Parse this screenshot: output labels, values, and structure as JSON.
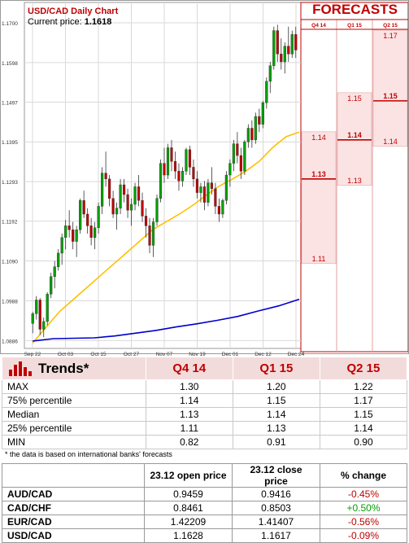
{
  "chart_title": "USD/CAD Daily Chart",
  "current_price_label": "Current price:",
  "current_price_value": "1.1618",
  "forecasts_title": "FORECASTS",
  "chart_data": {
    "type": "candlestick",
    "title": "USD/CAD Daily Chart",
    "y_ticks": [
      "1.1700",
      "1.1598",
      "1.1497",
      "1.1395",
      "1.1293",
      "1.1192",
      "1.1090",
      "1.0988",
      "1.0886"
    ],
    "ylim": [
      1.0866,
      1.1752
    ],
    "x_ticks": [
      "Sep 22",
      "Oct 03",
      "Oct 15",
      "Oct 27",
      "Nov 07",
      "Nov 19",
      "Dec 01",
      "Dec 12",
      "Dec 24"
    ],
    "candles": [
      [
        1.093,
        1.096,
        1.0905,
        1.0955
      ],
      [
        1.0955,
        1.1,
        1.094,
        1.099
      ],
      [
        1.099,
        1.0995,
        1.09,
        1.0915
      ],
      [
        1.0915,
        1.0945,
        1.0895,
        1.0935
      ],
      [
        1.0935,
        1.101,
        1.0925,
        1.1005
      ],
      [
        1.1005,
        1.106,
        1.0995,
        1.105
      ],
      [
        1.105,
        1.109,
        1.102,
        1.1075
      ],
      [
        1.1075,
        1.112,
        1.1065,
        1.111
      ],
      [
        1.111,
        1.116,
        1.108,
        1.115
      ],
      [
        1.115,
        1.1195,
        1.112,
        1.118
      ],
      [
        1.118,
        1.122,
        1.115,
        1.117
      ],
      [
        1.117,
        1.119,
        1.112,
        1.114
      ],
      [
        1.114,
        1.118,
        1.11,
        1.117
      ],
      [
        1.117,
        1.125,
        1.116,
        1.1245
      ],
      [
        1.1245,
        1.127,
        1.12,
        1.121
      ],
      [
        1.121,
        1.1225,
        1.116,
        1.118
      ],
      [
        1.118,
        1.12,
        1.113,
        1.115
      ],
      [
        1.115,
        1.119,
        1.112,
        1.1175
      ],
      [
        1.1175,
        1.124,
        1.116,
        1.123
      ],
      [
        1.123,
        1.133,
        1.121,
        1.1315
      ],
      [
        1.1315,
        1.137,
        1.128,
        1.13
      ],
      [
        1.13,
        1.131,
        1.123,
        1.125
      ],
      [
        1.125,
        1.127,
        1.12,
        1.121
      ],
      [
        1.121,
        1.124,
        1.117,
        1.1225
      ],
      [
        1.1225,
        1.13,
        1.121,
        1.1285
      ],
      [
        1.1285,
        1.13,
        1.124,
        1.126
      ],
      [
        1.126,
        1.1275,
        1.12,
        1.122
      ],
      [
        1.122,
        1.125,
        1.118,
        1.1235
      ],
      [
        1.1235,
        1.129,
        1.122,
        1.128
      ],
      [
        1.128,
        1.131,
        1.123,
        1.1245
      ],
      [
        1.1245,
        1.1265,
        1.119,
        1.1205
      ],
      [
        1.1205,
        1.1225,
        1.115,
        1.118
      ],
      [
        1.118,
        1.12,
        1.111,
        1.113
      ],
      [
        1.113,
        1.12,
        1.11,
        1.119
      ],
      [
        1.119,
        1.126,
        1.118,
        1.125
      ],
      [
        1.125,
        1.135,
        1.124,
        1.134
      ],
      [
        1.134,
        1.138,
        1.129,
        1.131
      ],
      [
        1.131,
        1.139,
        1.13,
        1.138
      ],
      [
        1.138,
        1.14,
        1.132,
        1.1345
      ],
      [
        1.1345,
        1.137,
        1.13,
        1.132
      ],
      [
        1.132,
        1.134,
        1.127,
        1.1295
      ],
      [
        1.1295,
        1.133,
        1.128,
        1.132
      ],
      [
        1.132,
        1.138,
        1.131,
        1.1375
      ],
      [
        1.1375,
        1.1385,
        1.131,
        1.133
      ],
      [
        1.133,
        1.135,
        1.128,
        1.13
      ],
      [
        1.13,
        1.132,
        1.125,
        1.1265
      ],
      [
        1.1265,
        1.129,
        1.124,
        1.128
      ],
      [
        1.128,
        1.1295,
        1.122,
        1.124
      ],
      [
        1.124,
        1.13,
        1.123,
        1.129
      ],
      [
        1.129,
        1.133,
        1.126,
        1.1275
      ],
      [
        1.1275,
        1.129,
        1.121,
        1.123
      ],
      [
        1.123,
        1.125,
        1.119,
        1.121
      ],
      [
        1.121,
        1.125,
        1.12,
        1.1245
      ],
      [
        1.1245,
        1.132,
        1.1235,
        1.131
      ],
      [
        1.131,
        1.135,
        1.128,
        1.134
      ],
      [
        1.134,
        1.14,
        1.132,
        1.139
      ],
      [
        1.139,
        1.142,
        1.134,
        1.136
      ],
      [
        1.136,
        1.138,
        1.13,
        1.132
      ],
      [
        1.132,
        1.14,
        1.131,
        1.1395
      ],
      [
        1.1395,
        1.144,
        1.138,
        1.143
      ],
      [
        1.143,
        1.145,
        1.138,
        1.14
      ],
      [
        1.14,
        1.147,
        1.139,
        1.146
      ],
      [
        1.146,
        1.148,
        1.142,
        1.144
      ],
      [
        1.144,
        1.15,
        1.143,
        1.1495
      ],
      [
        1.1495,
        1.156,
        1.148,
        1.155
      ],
      [
        1.155,
        1.16,
        1.152,
        1.159
      ],
      [
        1.159,
        1.169,
        1.158,
        1.168
      ],
      [
        1.168,
        1.1695,
        1.16,
        1.162
      ],
      [
        1.162,
        1.166,
        1.158,
        1.16
      ],
      [
        1.16,
        1.165,
        1.157,
        1.164
      ],
      [
        1.164,
        1.169,
        1.16,
        1.162
      ],
      [
        1.162,
        1.168,
        1.161,
        1.167
      ],
      [
        1.167,
        1.169,
        1.161,
        1.163
      ]
    ],
    "series": [
      {
        "color": "#ffc000",
        "values": [
          1.088,
          1.092,
          1.096,
          1.099,
          1.102,
          1.105,
          1.108,
          1.111,
          1.114,
          1.117,
          1.119,
          1.121,
          1.1232,
          1.1258,
          1.1282,
          1.13,
          1.132,
          1.1345,
          1.138,
          1.1408,
          1.142
        ]
      },
      {
        "color": "#0000cc",
        "values": [
          1.0885,
          1.0891,
          1.0892,
          1.0893,
          1.0898,
          1.0905,
          1.0912,
          1.0921,
          1.0929,
          1.0938,
          1.0948,
          1.0962,
          1.0975,
          1.0992
        ]
      }
    ],
    "forecasts": {
      "columns": [
        "Q4 14",
        "Q1 15",
        "Q2 15"
      ],
      "ranges": [
        {
          "low": 1.11,
          "high": 1.14
        },
        {
          "low": 1.13,
          "high": 1.15
        },
        {
          "low": 1.14,
          "high": 1.17
        }
      ],
      "medians": [
        1.13,
        1.14,
        1.15
      ],
      "labels": [
        {
          "top": "1.14",
          "median": "1.13",
          "bottom": "1.11"
        },
        {
          "top": "1.15",
          "median": "1.14",
          "bottom": "1.13"
        },
        {
          "top": "1.17",
          "median": "1.15",
          "bottom": "1.14"
        }
      ]
    },
    "colors": {
      "up": "#00a000",
      "down": "#c00000",
      "grid": "#d9d9d9",
      "forecast_fill": "#fbe3e3",
      "forecast_line": "#c00000"
    }
  },
  "trends": {
    "title": "Trends*",
    "columns": [
      "Q4 14",
      "Q1 15",
      "Q2 15"
    ],
    "rows": [
      {
        "label": "MAX",
        "values": [
          "1.30",
          "1.20",
          "1.22"
        ]
      },
      {
        "label": "75% percentile",
        "values": [
          "1.14",
          "1.15",
          "1.17"
        ]
      },
      {
        "label": "Median",
        "values": [
          "1.13",
          "1.14",
          "1.15"
        ]
      },
      {
        "label": "25% percentile",
        "values": [
          "1.11",
          "1.13",
          "1.14"
        ]
      },
      {
        "label": "MIN",
        "values": [
          "0.82",
          "0.91",
          "0.90"
        ]
      }
    ]
  },
  "footnote": "* the data is based on international banks' forecasts",
  "prices": {
    "headers": [
      "",
      "23.12 open price",
      "23.12 close price",
      "% change"
    ],
    "rows": [
      {
        "pair": "AUD/CAD",
        "open": "0.9459",
        "close": "0.9416",
        "change": "-0.45%",
        "dir": "neg"
      },
      {
        "pair": "CAD/CHF",
        "open": "0.8461",
        "close": "0.8503",
        "change": "+0.50%",
        "dir": "pos"
      },
      {
        "pair": "EUR/CAD",
        "open": "1.42209",
        "close": "1.41407",
        "change": "-0.56%",
        "dir": "neg"
      },
      {
        "pair": "USD/CAD",
        "open": "1.1628",
        "close": "1.1617",
        "change": "-0.09%",
        "dir": "neg"
      }
    ]
  }
}
